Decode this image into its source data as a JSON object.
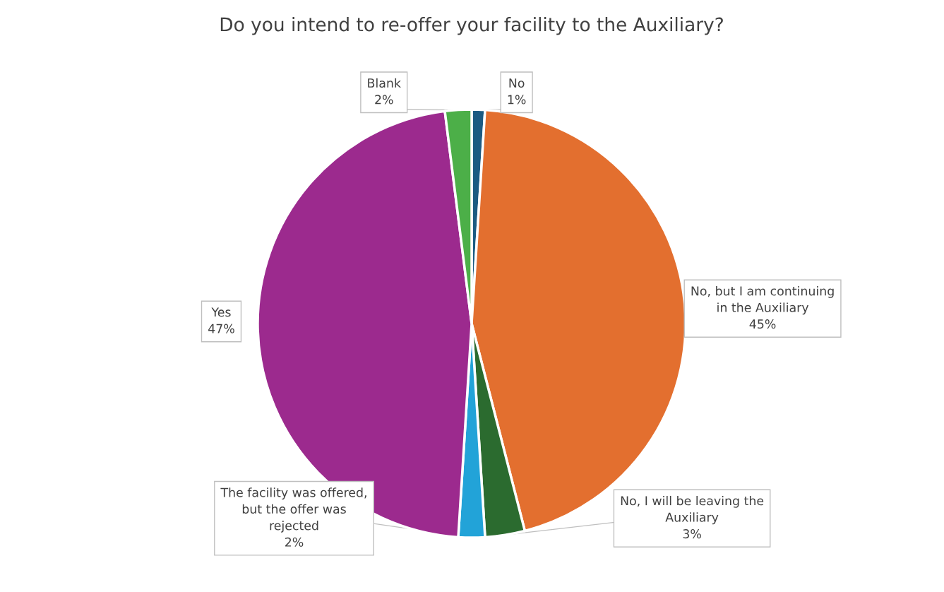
{
  "chart_data": {
    "type": "pie",
    "title": "Do you intend to re-offer your facility to the Auxiliary?",
    "categories": [
      "No",
      "No, but I am continuing\nin the Auxiliary",
      "No, I will be leaving the\nAuxiliary",
      "The facility was offered,\nbut the offer was\nrejected",
      "Yes",
      "Blank"
    ],
    "values": [
      1,
      45,
      3,
      2,
      47,
      2
    ],
    "colors": [
      "#1b5b82",
      "#e36f2f",
      "#2b6b2f",
      "#22a3d8",
      "#9c2a8e",
      "#4caf48"
    ],
    "value_labels": [
      "1%",
      "45%",
      "3%",
      "2%",
      "47%",
      "2%"
    ],
    "legend": false
  }
}
